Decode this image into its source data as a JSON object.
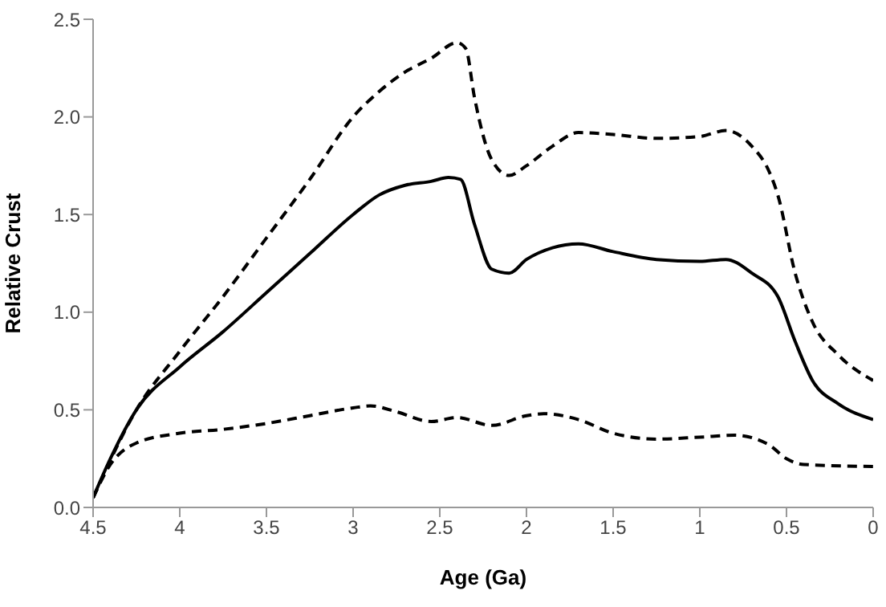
{
  "chart_data": {
    "type": "line",
    "xlabel": "Age (Ga)",
    "ylabel": "Relative Crust",
    "xlim": [
      4.5,
      0
    ],
    "xticks": [
      4.5,
      4,
      3.5,
      3,
      2.5,
      2,
      1.5,
      1,
      0.5,
      0
    ],
    "ylim": [
      0,
      2.5
    ],
    "yticks": [
      {
        "value": 0,
        "label": "0.0"
      },
      {
        "value": 0.5,
        "label": "0.5"
      },
      {
        "value": 1,
        "label": "1.0"
      },
      {
        "value": 1.5,
        "label": "1.5"
      },
      {
        "value": 2,
        "label": "2.0"
      },
      {
        "value": 2.5,
        "label": "2.5"
      }
    ],
    "grid": false,
    "legend": false,
    "marker": "none",
    "series": [
      {
        "color": "#000000",
        "line_style": "dashed",
        "x": [
          4.5,
          4.25,
          4.0,
          3.75,
          3.5,
          3.25,
          3.0,
          2.85,
          2.7,
          2.55,
          2.4,
          2.35,
          2.3,
          2.2,
          2.1,
          2.0,
          1.85,
          1.7,
          1.5,
          1.25,
          1.0,
          0.85,
          0.7,
          0.6,
          0.55,
          0.45,
          0.35,
          0.2,
          0
        ],
        "values": [
          0.05,
          0.5,
          0.8,
          1.08,
          1.38,
          1.68,
          2.0,
          2.13,
          2.23,
          2.3,
          2.38,
          2.35,
          2.1,
          1.78,
          1.7,
          1.75,
          1.85,
          1.92,
          1.91,
          1.89,
          1.9,
          1.93,
          1.85,
          1.72,
          1.6,
          1.2,
          0.95,
          0.78,
          0.65
        ]
      },
      {
        "color": "#000000",
        "line_style": "solid",
        "x": [
          4.5,
          4.4,
          4.25,
          4.0,
          3.75,
          3.5,
          3.25,
          3.0,
          2.85,
          2.7,
          2.55,
          2.45,
          2.38,
          2.3,
          2.2,
          2.1,
          2.0,
          1.85,
          1.7,
          1.5,
          1.25,
          1.0,
          0.85,
          0.7,
          0.55,
          0.45,
          0.35,
          0.2,
          0
        ],
        "values": [
          0.05,
          0.25,
          0.5,
          0.72,
          0.9,
          1.1,
          1.3,
          1.5,
          1.6,
          1.65,
          1.67,
          1.69,
          1.68,
          1.45,
          1.22,
          1.2,
          1.27,
          1.33,
          1.35,
          1.31,
          1.27,
          1.26,
          1.27,
          1.2,
          1.08,
          0.85,
          0.65,
          0.53,
          0.45
        ]
      },
      {
        "color": "#000000",
        "line_style": "dashed",
        "x": [
          4.5,
          4.4,
          4.25,
          4.0,
          3.75,
          3.5,
          3.25,
          3.0,
          2.9,
          2.75,
          2.55,
          2.4,
          2.2,
          2.0,
          1.9,
          1.7,
          1.5,
          1.25,
          1.0,
          0.8,
          0.6,
          0.5,
          0.4,
          0
        ],
        "values": [
          0.05,
          0.22,
          0.33,
          0.38,
          0.4,
          0.43,
          0.47,
          0.51,
          0.52,
          0.49,
          0.44,
          0.46,
          0.42,
          0.47,
          0.48,
          0.45,
          0.38,
          0.35,
          0.36,
          0.37,
          0.32,
          0.25,
          0.22,
          0.21
        ]
      }
    ]
  }
}
